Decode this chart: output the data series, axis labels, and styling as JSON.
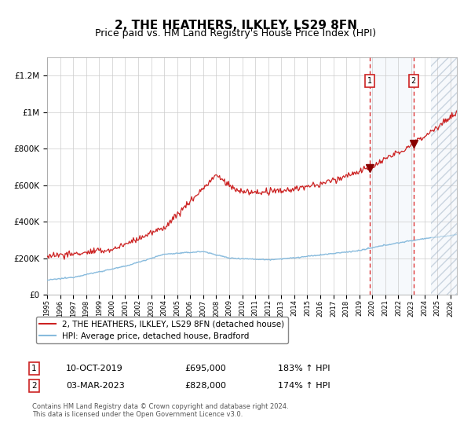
{
  "title": "2, THE HEATHERS, ILKLEY, LS29 8FN",
  "subtitle": "Price paid vs. HM Land Registry's House Price Index (HPI)",
  "title_fontsize": 11,
  "subtitle_fontsize": 9,
  "background_color": "#ffffff",
  "plot_bg_color": "#ffffff",
  "grid_color": "#cccccc",
  "line1_color": "#cc2222",
  "line2_color": "#88bbdd",
  "sale1_date_year": 2019.78,
  "sale2_date_year": 2023.17,
  "sale1_price": 695000,
  "sale2_price": 828000,
  "sale1_label": "10-OCT-2019",
  "sale2_label": "03-MAR-2023",
  "sale1_pct": "183% ↑ HPI",
  "sale2_pct": "174% ↑ HPI",
  "legend_line1": "2, THE HEATHERS, ILKLEY, LS29 8FN (detached house)",
  "legend_line2": "HPI: Average price, detached house, Bradford",
  "footnote": "Contains HM Land Registry data © Crown copyright and database right 2024.\nThis data is licensed under the Open Government Licence v3.0.",
  "xmin": 1995,
  "xmax": 2026.5,
  "ymin": 0,
  "ymax": 1300000,
  "hatch_start": 2024.5
}
